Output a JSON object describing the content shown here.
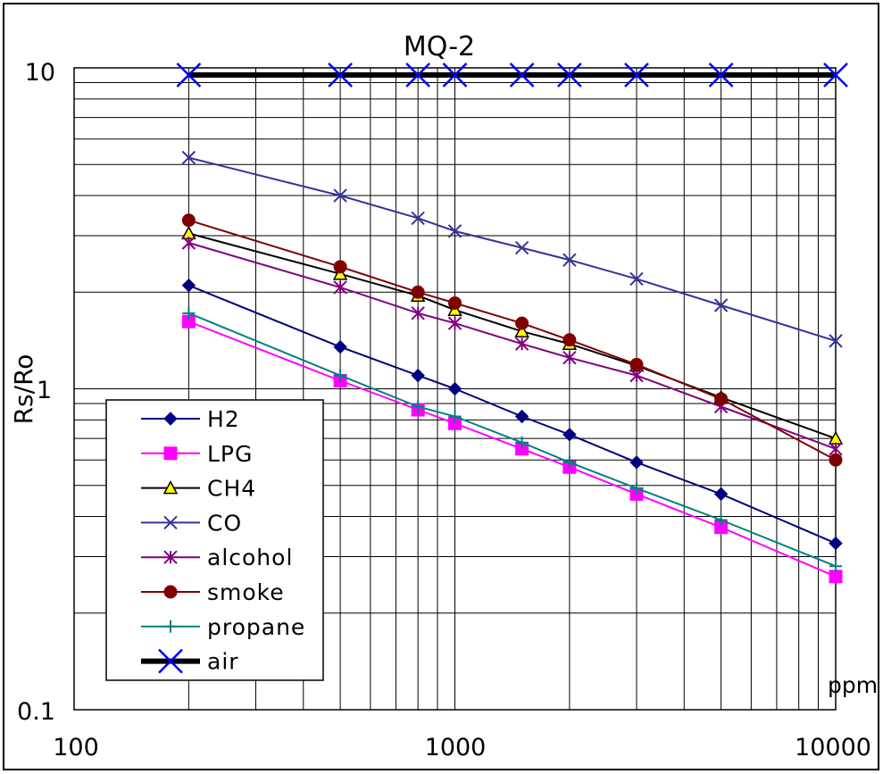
{
  "chart_data": {
    "type": "line",
    "title": "MQ-2",
    "xlabel": "",
    "ylabel": "Rs/Ro",
    "x_unit": "ppm",
    "x_scale": "log",
    "y_scale": "log",
    "xlim": [
      100,
      10000
    ],
    "ylim": [
      0.1,
      10
    ],
    "x_tick_labels": [
      "100",
      "1000",
      "10000"
    ],
    "y_tick_labels": [
      "10",
      "1",
      "0.1"
    ],
    "grid": true,
    "legend_position": "bottom-left",
    "series": [
      {
        "name": "H2",
        "color": "#000080",
        "marker": "diamond",
        "line_width": 2,
        "x": [
          200,
          500,
          800,
          1000,
          1500,
          2000,
          3000,
          5000,
          10000
        ],
        "y": [
          2.1,
          1.35,
          1.1,
          1.0,
          0.82,
          0.72,
          0.59,
          0.47,
          0.33
        ]
      },
      {
        "name": "LPG",
        "color": "#ff00ff",
        "marker": "square",
        "line_width": 2,
        "x": [
          200,
          500,
          800,
          1000,
          1500,
          2000,
          3000,
          5000,
          10000
        ],
        "y": [
          1.62,
          1.06,
          0.86,
          0.78,
          0.65,
          0.57,
          0.47,
          0.37,
          0.26
        ]
      },
      {
        "name": "CH4",
        "color": "#000000",
        "marker": "triangle",
        "line_width": 2,
        "x": [
          200,
          500,
          800,
          1000,
          1500,
          2000,
          3000,
          5000,
          10000
        ],
        "y": [
          3.05,
          2.28,
          1.95,
          1.76,
          1.51,
          1.38,
          1.18,
          0.94,
          0.7
        ]
      },
      {
        "name": "CO",
        "color": "#333399",
        "marker": "x",
        "line_width": 2,
        "x": [
          200,
          500,
          800,
          1000,
          1500,
          2000,
          3000,
          5000,
          10000
        ],
        "y": [
          5.25,
          4.0,
          3.4,
          3.1,
          2.75,
          2.52,
          2.2,
          1.82,
          1.41
        ]
      },
      {
        "name": "alcohol",
        "color": "#800080",
        "marker": "asterisk",
        "line_width": 2,
        "x": [
          200,
          500,
          800,
          1000,
          1500,
          2000,
          3000,
          5000,
          10000
        ],
        "y": [
          2.85,
          2.07,
          1.72,
          1.6,
          1.38,
          1.25,
          1.1,
          0.88,
          0.65
        ]
      },
      {
        "name": "smoke",
        "color": "#800000",
        "marker": "circle",
        "line_width": 2,
        "x": [
          200,
          500,
          800,
          1000,
          1500,
          2000,
          3000,
          5000,
          10000
        ],
        "y": [
          3.35,
          2.4,
          2.0,
          1.85,
          1.6,
          1.42,
          1.19,
          0.93,
          0.6
        ]
      },
      {
        "name": "propane",
        "color": "#008080",
        "marker": "plus",
        "line_width": 2,
        "x": [
          200,
          500,
          800,
          1000,
          1500,
          2000,
          3000,
          5000,
          10000
        ],
        "y": [
          1.72,
          1.1,
          0.88,
          0.82,
          0.68,
          0.59,
          0.49,
          0.39,
          0.28
        ]
      },
      {
        "name": "air",
        "color": "#000000",
        "marker_color": "#0000ff",
        "marker": "x",
        "line_width": 6,
        "x": [
          200,
          500,
          800,
          1000,
          1500,
          2000,
          3000,
          5000,
          10000
        ],
        "y": [
          9.5,
          9.5,
          9.5,
          9.5,
          9.5,
          9.5,
          9.5,
          9.5,
          9.5
        ]
      }
    ]
  }
}
